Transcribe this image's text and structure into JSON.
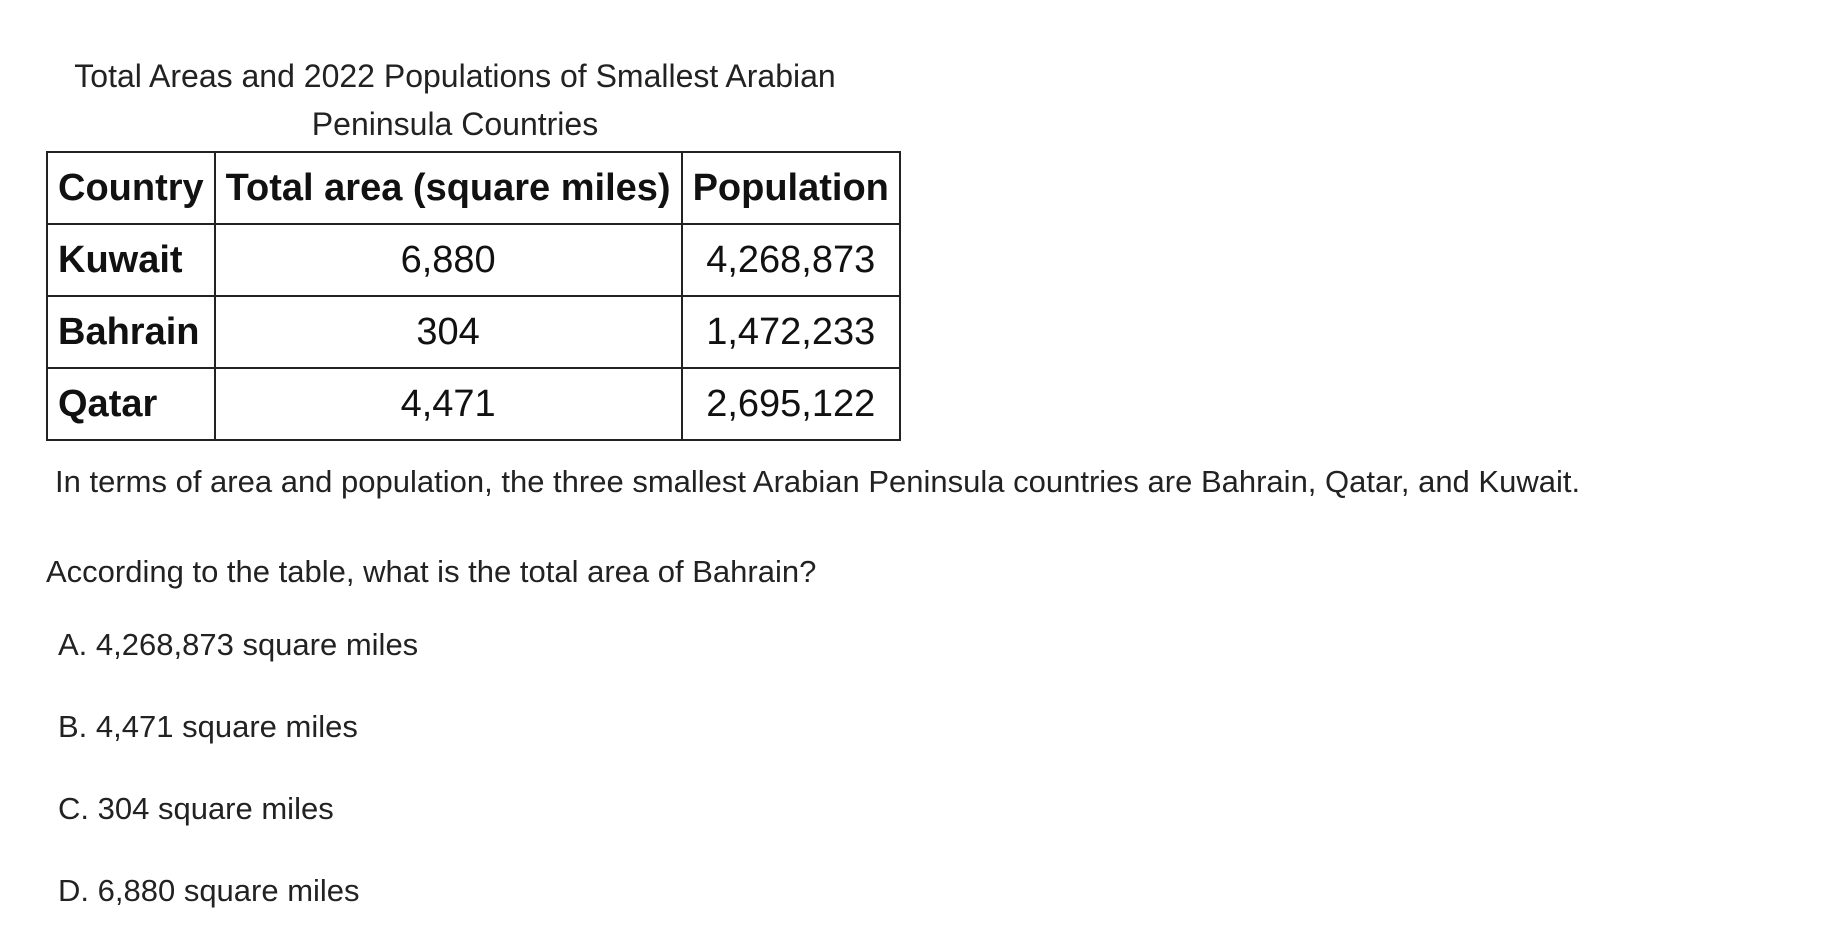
{
  "table": {
    "caption_line1": "Total Areas and 2022 Populations of Smallest Arabian",
    "caption_line2": "Peninsula Countries",
    "headers": [
      "Country",
      "Total area (square miles)",
      "Population"
    ],
    "rows": [
      {
        "country": "Kuwait",
        "area": "6,880",
        "population": "4,268,873"
      },
      {
        "country": "Bahrain",
        "area": "304",
        "population": "1,472,233"
      },
      {
        "country": "Qatar",
        "area": "4,471",
        "population": "2,695,122"
      }
    ]
  },
  "note": "In terms of area and population, the three smallest Arabian Peninsula countries are Bahrain, Qatar, and Kuwait.",
  "question": "According to the table, what is the total area of Bahrain?",
  "options": [
    {
      "letter": "A.",
      "text": "4,268,873 square miles"
    },
    {
      "letter": "B.",
      "text": "4,471 square miles"
    },
    {
      "letter": "C.",
      "text": "304 square miles"
    },
    {
      "letter": "D.",
      "text": "6,880 square miles"
    }
  ]
}
